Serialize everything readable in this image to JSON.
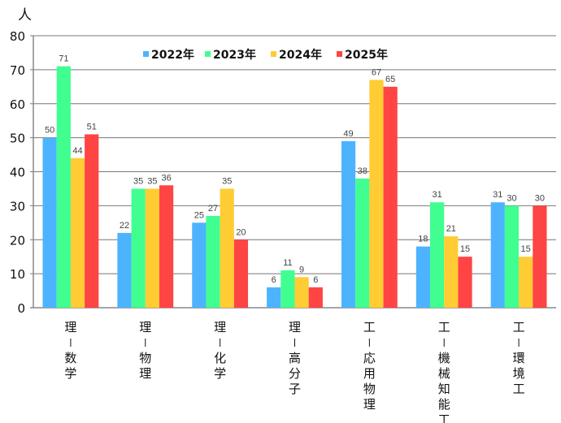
{
  "chart_data": {
    "type": "bar",
    "ylabel": "人",
    "ylim": [
      0,
      80
    ],
    "yticks": [
      0,
      10,
      20,
      30,
      40,
      50,
      60,
      70,
      80
    ],
    "grid": true,
    "legend_position": "top-center",
    "categories": [
      "理-数学",
      "理-物理",
      "理-化学",
      "理-高分子",
      "工-応用物理",
      "工-機械知能工",
      "工-環境工"
    ],
    "series": [
      {
        "name": "2022年",
        "color": "#4db3ff",
        "values": [
          50,
          22,
          25,
          6,
          49,
          18,
          31
        ]
      },
      {
        "name": "2023年",
        "color": "#40ff90",
        "values": [
          71,
          35,
          27,
          11,
          38,
          31,
          30
        ]
      },
      {
        "name": "2024年",
        "color": "#ffcc33",
        "values": [
          44,
          35,
          35,
          9,
          67,
          21,
          15
        ]
      },
      {
        "name": "2025年",
        "color": "#ff4444",
        "values": [
          51,
          36,
          20,
          6,
          65,
          15,
          30
        ]
      }
    ]
  }
}
